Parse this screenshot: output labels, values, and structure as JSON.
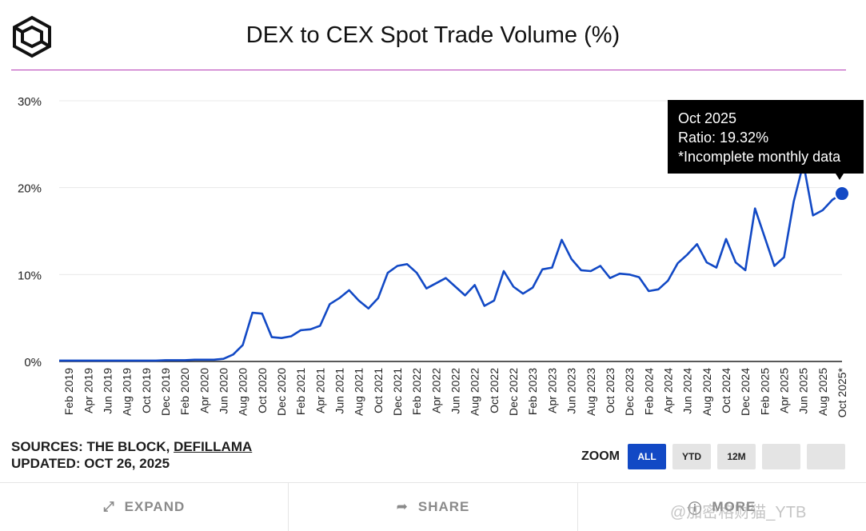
{
  "header": {
    "title": "DEX to CEX Spot Trade Volume (%)",
    "logo_icon": "cube-logo-icon"
  },
  "tooltip": {
    "line1": "Oct 2025",
    "line2": "Ratio: 19.32%",
    "line3": "*Incomplete monthly data"
  },
  "footer": {
    "sources_prefix": "SOURCES: THE BLOCK, ",
    "sources_link": "DEFILLAMA",
    "updated": "UPDATED: OCT 26, 2025"
  },
  "zoom": {
    "label": "ZOOM",
    "options": [
      "ALL",
      "YTD",
      "12M",
      "",
      ""
    ],
    "selected": "ALL"
  },
  "actions": {
    "expand": "EXPAND",
    "share": "SHARE",
    "more": "MORE"
  },
  "watermark": "@加密格财猫_YTB",
  "colors": {
    "line": "#1249c5",
    "title_rule": "#b53bb5",
    "active_button": "#1249c5"
  },
  "chart_data": {
    "type": "line",
    "title": "DEX to CEX Spot Trade Volume (%)",
    "xlabel": "",
    "ylabel": "",
    "ylim": [
      0,
      30
    ],
    "yticks": [
      "0%",
      "10%",
      "20%",
      "30%"
    ],
    "ytick_values": [
      0,
      10,
      20,
      30
    ],
    "grid": true,
    "x_tick_labels": [
      "Feb 2019",
      "Apr 2019",
      "Jun 2019",
      "Aug 2019",
      "Oct 2019",
      "Dec 2019",
      "Feb 2020",
      "Apr 2020",
      "Jun 2020",
      "Aug 2020",
      "Oct 2020",
      "Dec 2020",
      "Feb 2021",
      "Apr 2021",
      "Jun 2021",
      "Aug 2021",
      "Oct 2021",
      "Dec 2021",
      "Feb 2022",
      "Apr 2022",
      "Jun 2022",
      "Aug 2022",
      "Oct 2022",
      "Dec 2022",
      "Feb 2023",
      "Apr 2023",
      "Jun 2023",
      "Aug 2023",
      "Oct 2023",
      "Dec 2023",
      "Feb 2024",
      "Apr 2024",
      "Jun 2024",
      "Aug 2024",
      "Oct 2024",
      "Dec 2024",
      "Feb 2025",
      "Apr 2025",
      "Jun 2025",
      "Aug 2025",
      "Oct 2025*"
    ],
    "series": [
      {
        "x": [
          "Jan 2019",
          "Feb 2019",
          "Mar 2019",
          "Apr 2019",
          "May 2019",
          "Jun 2019",
          "Jul 2019",
          "Aug 2019",
          "Sep 2019",
          "Oct 2019",
          "Nov 2019",
          "Dec 2019",
          "Jan 2020",
          "Feb 2020",
          "Mar 2020",
          "Apr 2020",
          "May 2020",
          "Jun 2020",
          "Jul 2020",
          "Aug 2020",
          "Sep 2020",
          "Oct 2020",
          "Nov 2020",
          "Dec 2020",
          "Jan 2021",
          "Feb 2021",
          "Mar 2021",
          "Apr 2021",
          "May 2021",
          "Jun 2021",
          "Jul 2021",
          "Aug 2021",
          "Sep 2021",
          "Oct 2021",
          "Nov 2021",
          "Dec 2021",
          "Jan 2022",
          "Feb 2022",
          "Mar 2022",
          "Apr 2022",
          "May 2022",
          "Jun 2022",
          "Jul 2022",
          "Aug 2022",
          "Sep 2022",
          "Oct 2022",
          "Nov 2022",
          "Dec 2022",
          "Jan 2023",
          "Feb 2023",
          "Mar 2023",
          "Apr 2023",
          "May 2023",
          "Jun 2023",
          "Jul 2023",
          "Aug 2023",
          "Sep 2023",
          "Oct 2023",
          "Nov 2023",
          "Dec 2023",
          "Jan 2024",
          "Feb 2024",
          "Mar 2024",
          "Apr 2024",
          "May 2024",
          "Jun 2024",
          "Jul 2024",
          "Aug 2024",
          "Sep 2024",
          "Oct 2024",
          "Nov 2024",
          "Dec 2024",
          "Jan 2025",
          "Feb 2025",
          "Mar 2025",
          "Apr 2025",
          "May 2025",
          "Jun 2025",
          "Jul 2025",
          "Aug 2025",
          "Sep 2025",
          "Oct 2025"
        ],
        "values": [
          0.1,
          0.1,
          0.1,
          0.1,
          0.1,
          0.1,
          0.1,
          0.1,
          0.1,
          0.1,
          0.1,
          0.15,
          0.15,
          0.15,
          0.2,
          0.2,
          0.2,
          0.3,
          0.8,
          1.9,
          5.6,
          5.5,
          2.8,
          2.7,
          2.9,
          3.6,
          3.7,
          4.1,
          6.6,
          7.3,
          8.2,
          7.0,
          6.1,
          7.3,
          10.2,
          11.0,
          11.2,
          10.2,
          8.4,
          9.0,
          9.6,
          8.6,
          7.6,
          8.8,
          6.4,
          7.0,
          10.4,
          8.6,
          7.8,
          8.5,
          10.6,
          10.8,
          14.0,
          11.8,
          10.5,
          10.4,
          11.0,
          9.6,
          10.1,
          10.0,
          9.7,
          8.1,
          8.3,
          9.3,
          11.3,
          12.3,
          13.5,
          11.4,
          10.8,
          14.1,
          11.4,
          10.5,
          17.6,
          14.3,
          11.0,
          12.0,
          18.4,
          22.8,
          16.8,
          17.4,
          18.6,
          19.32
        ]
      }
    ],
    "annotations": [
      "Oct 2025",
      "Ratio: 19.32%",
      "*Incomplete monthly data"
    ]
  }
}
